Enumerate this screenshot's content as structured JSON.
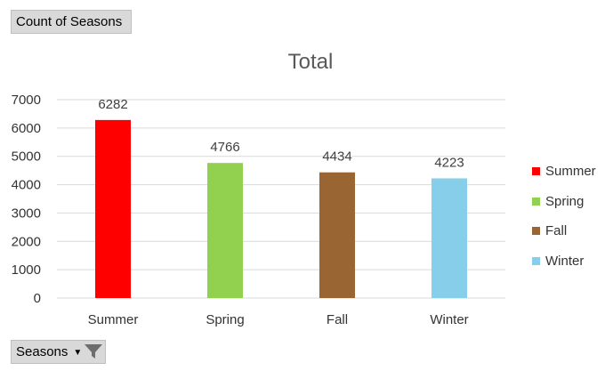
{
  "values_field": {
    "label": "Count of Seasons"
  },
  "axis_field": {
    "label": "Seasons"
  },
  "chart_data": {
    "type": "bar",
    "title": "Total",
    "categories": [
      "Summer",
      "Spring",
      "Fall",
      "Winter"
    ],
    "values": [
      6282,
      4766,
      4434,
      4223
    ],
    "colors": [
      "#ff0000",
      "#92d050",
      "#996633",
      "#87ceeb"
    ],
    "ylim": [
      0,
      7000
    ],
    "yticks": [
      0,
      1000,
      2000,
      3000,
      4000,
      5000,
      6000,
      7000
    ],
    "grid": true,
    "legend": "right",
    "xlabel": "",
    "ylabel": ""
  }
}
